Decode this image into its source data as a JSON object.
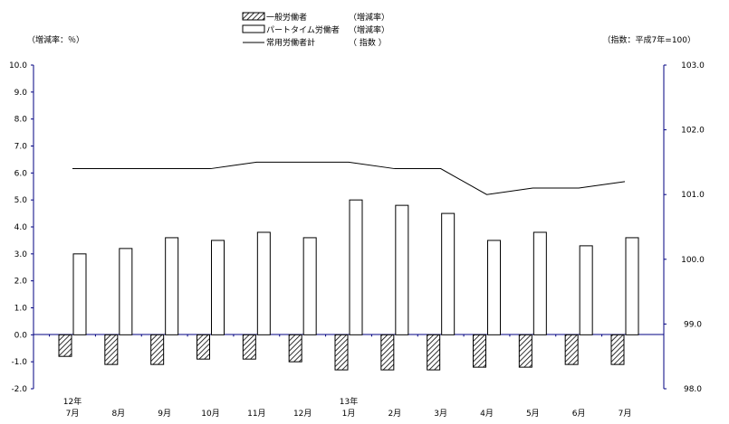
{
  "chart_data": {
    "type": "bar",
    "left_axis_label": "（増減率：％）",
    "right_axis_label": "（指数：平成7年=100）",
    "categories": [
      {
        "year": "12年",
        "month": "7月"
      },
      {
        "year": "",
        "month": "8月"
      },
      {
        "year": "",
        "month": "9月"
      },
      {
        "year": "",
        "month": "10月"
      },
      {
        "year": "",
        "month": "11月"
      },
      {
        "year": "",
        "month": "12月"
      },
      {
        "year": "13年",
        "month": "1月"
      },
      {
        "year": "",
        "month": "2月"
      },
      {
        "year": "",
        "month": "3月"
      },
      {
        "year": "",
        "month": "4月"
      },
      {
        "year": "",
        "month": "5月"
      },
      {
        "year": "",
        "month": "6月"
      },
      {
        "year": "",
        "month": "7月"
      }
    ],
    "series": [
      {
        "name": "一般労働者",
        "unit_label": "（増減率）",
        "type": "bar",
        "pattern": "hatched",
        "axis": "left",
        "values": [
          -0.8,
          -1.1,
          -1.1,
          -0.9,
          -0.9,
          -1.0,
          -1.3,
          -1.3,
          -1.3,
          -1.2,
          -1.2,
          -1.1,
          -1.1
        ]
      },
      {
        "name": "パートタイム労働者",
        "unit_label": "（増減率）",
        "type": "bar",
        "pattern": "open",
        "axis": "left",
        "values": [
          3.0,
          3.2,
          3.6,
          3.5,
          3.8,
          3.6,
          5.0,
          4.8,
          4.5,
          3.5,
          3.8,
          3.3,
          3.6
        ]
      },
      {
        "name": "常用労働者計",
        "unit_label": "（ 指数 ）",
        "type": "line",
        "axis": "right",
        "values": [
          101.4,
          101.4,
          101.4,
          101.4,
          101.5,
          101.5,
          101.5,
          101.4,
          101.4,
          101.0,
          101.1,
          101.1,
          101.2
        ]
      }
    ],
    "y_left": {
      "min": -2.0,
      "max": 10.0,
      "ticks": [
        "10.0",
        "9.0",
        "8.0",
        "7.0",
        "6.0",
        "5.0",
        "4.0",
        "3.0",
        "2.0",
        "1.0",
        "0.0",
        "-1.0",
        "-2.0"
      ]
    },
    "y_right": {
      "min": 98.0,
      "max": 103.0,
      "ticks": [
        "103.0",
        "102.0",
        "101.0",
        "100.0",
        "99.0",
        "98.0"
      ]
    },
    "grid": false,
    "legend_position": "top-center",
    "colors": {
      "axis": "#000080",
      "bar_stroke": "#000000",
      "line": "#000000",
      "zero_line": "#000080"
    }
  }
}
